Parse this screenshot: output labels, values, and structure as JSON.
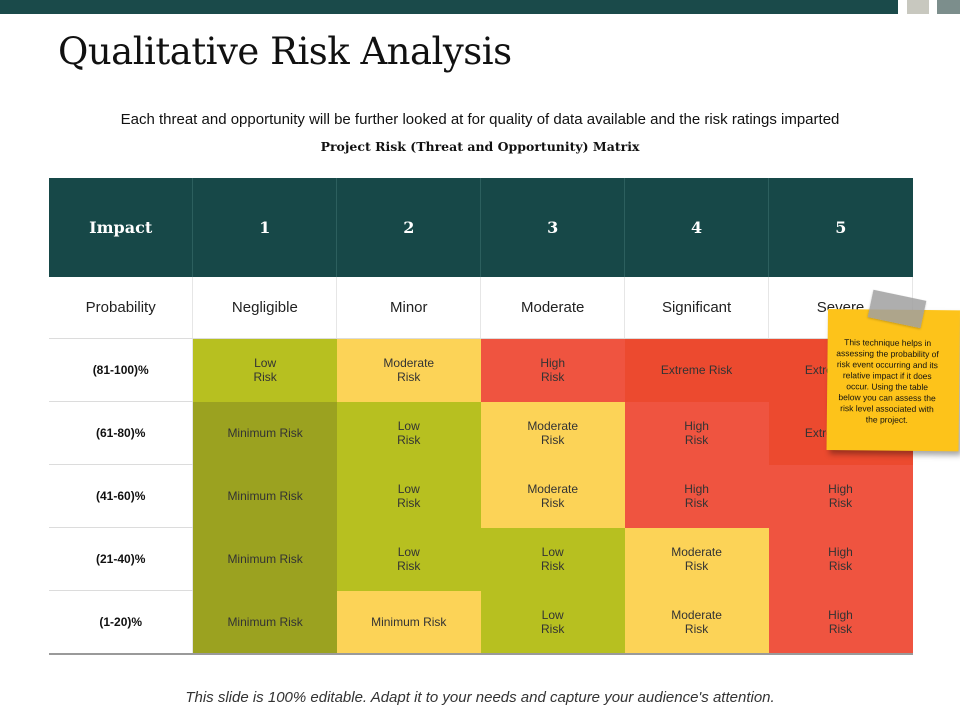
{
  "title": "Qualitative Risk Analysis",
  "subtitle": "Each threat and opportunity will be further looked at for quality of data available and the risk ratings imparted",
  "matrix_title": "Project Risk (Threat and Opportunity) Matrix",
  "header": [
    "Impact",
    "1",
    "2",
    "3",
    "4",
    "5"
  ],
  "subheader": [
    "Probability",
    "Negligible",
    "Minor",
    "Moderate",
    "Significant",
    "Severe"
  ],
  "rows": [
    {
      "label": "(81-100)%",
      "cells": [
        {
          "line1": "Low",
          "line2": "Risk"
        },
        {
          "line1": "Moderate",
          "line2": "Risk"
        },
        {
          "line1": "High",
          "line2": "Risk"
        },
        {
          "line1": "Extreme Risk",
          "line2": ""
        },
        {
          "line1": "Extreme Risk",
          "line2": ""
        }
      ]
    },
    {
      "label": "(61-80)%",
      "cells": [
        {
          "line1": "Minimum Risk",
          "line2": ""
        },
        {
          "line1": "Low",
          "line2": "Risk"
        },
        {
          "line1": "Moderate",
          "line2": "Risk"
        },
        {
          "line1": "High",
          "line2": "Risk"
        },
        {
          "line1": "Extreme Risk",
          "line2": ""
        }
      ]
    },
    {
      "label": "(41-60)%",
      "cells": [
        {
          "line1": "Minimum Risk",
          "line2": ""
        },
        {
          "line1": "Low",
          "line2": "Risk"
        },
        {
          "line1": "Moderate",
          "line2": "Risk"
        },
        {
          "line1": "High",
          "line2": "Risk"
        },
        {
          "line1": "High",
          "line2": "Risk"
        }
      ]
    },
    {
      "label": "(21-40)%",
      "cells": [
        {
          "line1": "Minimum Risk",
          "line2": ""
        },
        {
          "line1": "Low",
          "line2": "Risk"
        },
        {
          "line1": "Low",
          "line2": "Risk"
        },
        {
          "line1": "Moderate",
          "line2": "Risk"
        },
        {
          "line1": "High",
          "line2": "Risk"
        }
      ]
    },
    {
      "label": "(1-20)%",
      "cells": [
        {
          "line1": "Minimum Risk",
          "line2": ""
        },
        {
          "line1": "Minimum Risk",
          "line2": ""
        },
        {
          "line1": "Low",
          "line2": "Risk"
        },
        {
          "line1": "Moderate",
          "line2": "Risk"
        },
        {
          "line1": "High",
          "line2": "Risk"
        }
      ]
    }
  ],
  "note": "This technique helps in assessing the probability of risk event occurring and its relative impact if it does occur. Using the table below you can assess the risk level associated with the project.",
  "footer": "This slide is 100% editable. Adapt it to your needs and capture your audience's attention.",
  "colors": {
    "header_bg": "#174848",
    "minimum": "#9ba220",
    "low": "#b7c020",
    "moderate": "#fcd357",
    "high": "#ef5440",
    "extreme": "#ec4a2f",
    "note": "#fdc31a"
  }
}
